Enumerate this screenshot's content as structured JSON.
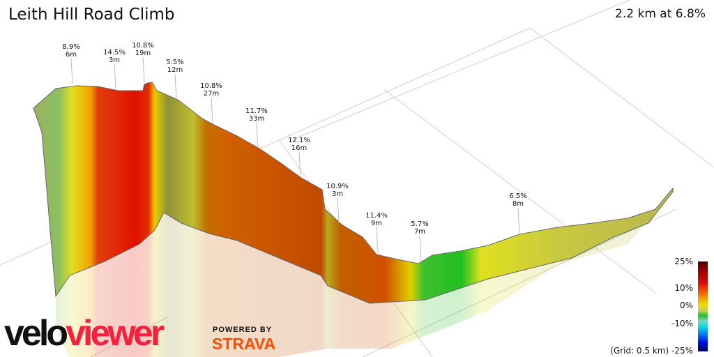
{
  "header": {
    "title": "Leith Hill Road Climb",
    "summary": "2.2 km at 6.8%"
  },
  "branding": {
    "logo_part1": "velo",
    "logo_part2": "viewer",
    "powered_by": "POWERED BY",
    "strava": "STRAVA"
  },
  "legend": {
    "labels": [
      "25%",
      "10%",
      "0%",
      "-10%",
      "-25%"
    ],
    "grid_note": "(Grid: 0.5 km)",
    "colors": {
      "25": "#4a0000",
      "10": "#e8e000",
      "0": "#20c020",
      "-10": "#10e0e0",
      "-25": "#000060"
    }
  },
  "chart_data": {
    "type": "area",
    "title": "Leith Hill Road Climb",
    "distance_km": 2.2,
    "avg_gradient_pct": 6.8,
    "grid_spacing_km": 0.5,
    "color_scale_pct": [
      -25,
      25
    ],
    "annotations": [
      {
        "gradient": "8.9%",
        "length": "6m"
      },
      {
        "gradient": "14.5%",
        "length": "3m"
      },
      {
        "gradient": "10.8%",
        "length": "19m"
      },
      {
        "gradient": "5.5%",
        "length": "12m"
      },
      {
        "gradient": "10.8%",
        "length": "27m"
      },
      {
        "gradient": "11.7%",
        "length": "33m"
      },
      {
        "gradient": "12.1%",
        "length": "16m"
      },
      {
        "gradient": "10.9%",
        "length": "3m"
      },
      {
        "gradient": "11.4%",
        "length": "9m"
      },
      {
        "gradient": "5.7%",
        "length": "7m"
      },
      {
        "gradient": "6.5%",
        "length": "8m"
      }
    ]
  }
}
